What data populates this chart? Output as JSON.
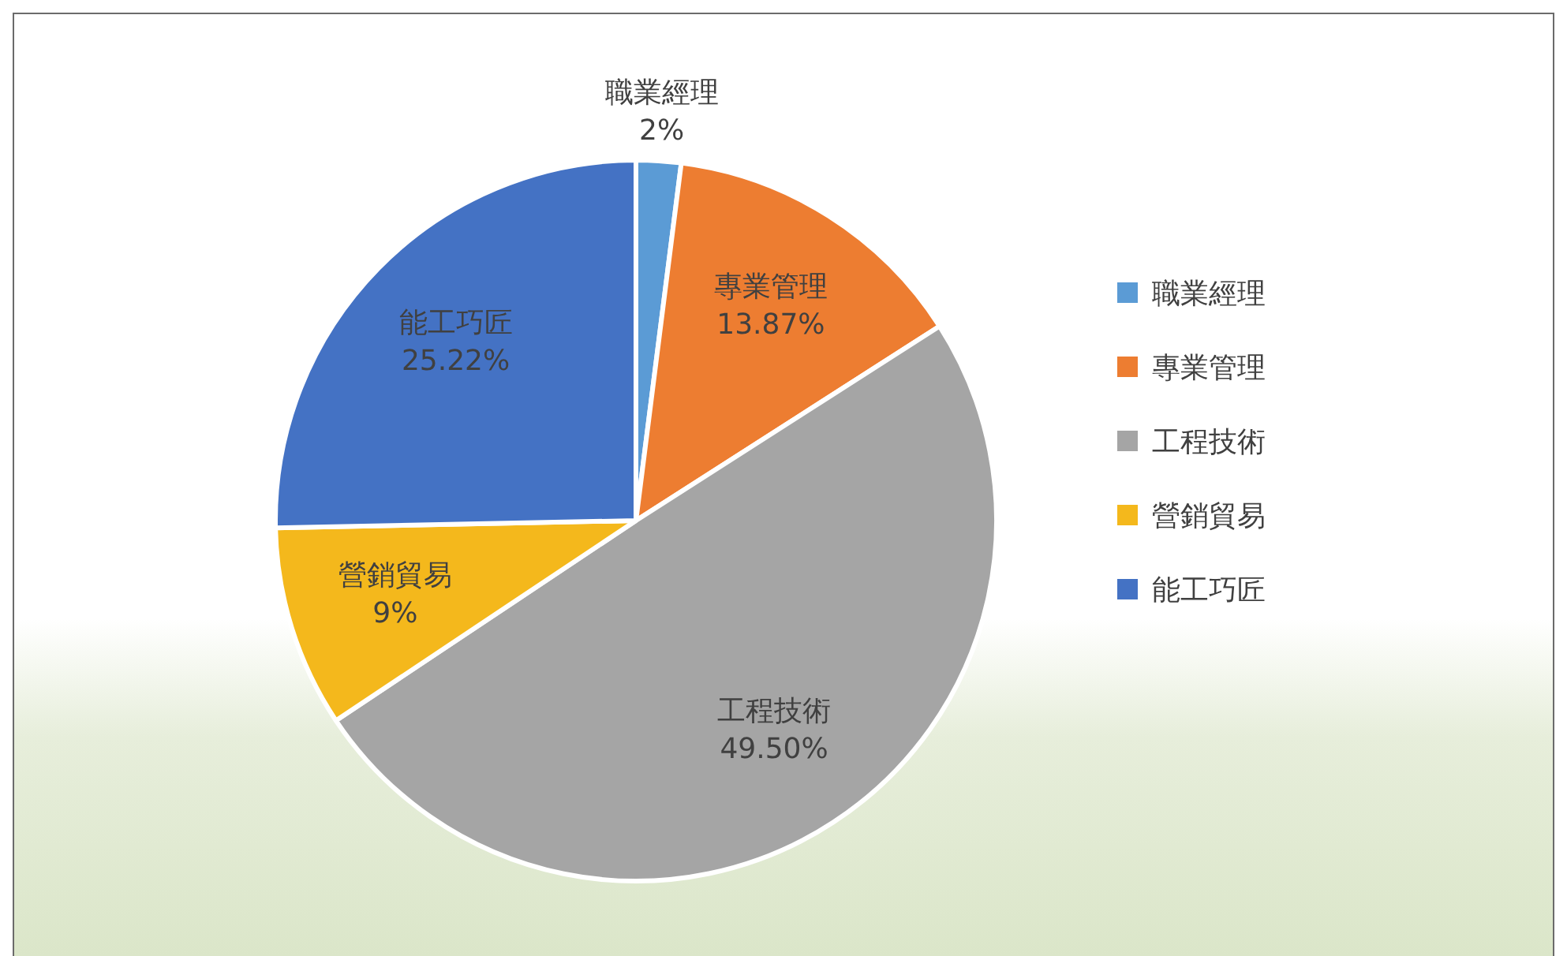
{
  "chart_data": {
    "type": "pie",
    "categories": [
      "職業經理",
      "專業管理",
      "工程技術",
      "營銷貿易",
      "能工巧匠"
    ],
    "values": [
      2,
      13.87,
      49.5,
      9,
      25.22
    ],
    "value_labels": [
      "2%",
      "13.87%",
      "49.50%",
      "9%",
      "25.22%"
    ],
    "colors": [
      "#5b9bd5",
      "#ed7d31",
      "#a5a5a5",
      "#f4b81c",
      "#4472c4"
    ],
    "legend": "right"
  }
}
